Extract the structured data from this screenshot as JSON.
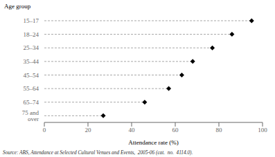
{
  "chart_data": {
    "type": "dot",
    "orientation": "horizontal",
    "ylabel": "Age group",
    "xlabel": "Attendance rate (%)",
    "categories": [
      "15–17",
      "18–24",
      "25–34",
      "35–44",
      "45–54",
      "55–64",
      "65–74",
      "75 and over"
    ],
    "values": [
      95,
      86,
      77,
      68,
      63,
      57,
      46,
      27
    ],
    "xlim": [
      0,
      100
    ],
    "xticks": [
      0,
      20,
      40,
      60,
      80,
      100
    ],
    "color": "#000000",
    "marker": "diamond",
    "line_style": "dashed",
    "annotations": [
      "Source: ABS, Attendance at Selected Cultural Venues and Events,  2005-06 (cat.  no.  4114.0)."
    ]
  }
}
